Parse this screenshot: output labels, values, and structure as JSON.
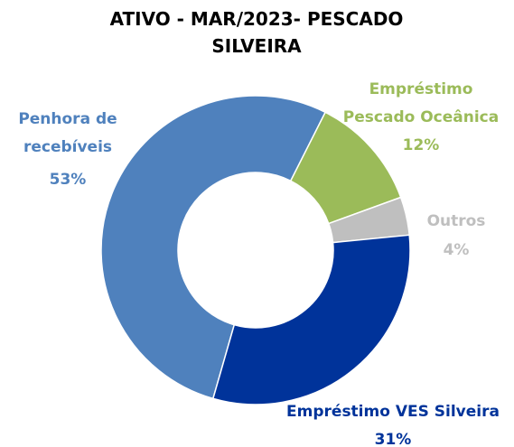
{
  "chart_data": {
    "type": "donut",
    "title": "ATIVO - MAR/2023- PESCADO SILVEIRA",
    "categories": [
      "Penhora de recebíveis",
      "Empréstimo Pescado Oceânica",
      "Outros",
      "Empréstimo VES Silveira"
    ],
    "values": [
      53,
      12,
      4,
      31
    ],
    "value_labels": [
      "53%",
      "12%",
      "4%",
      "31%"
    ],
    "colors": [
      "#4f81bd",
      "#9bbb59",
      "#bfbfbf",
      "#00339a"
    ]
  }
}
